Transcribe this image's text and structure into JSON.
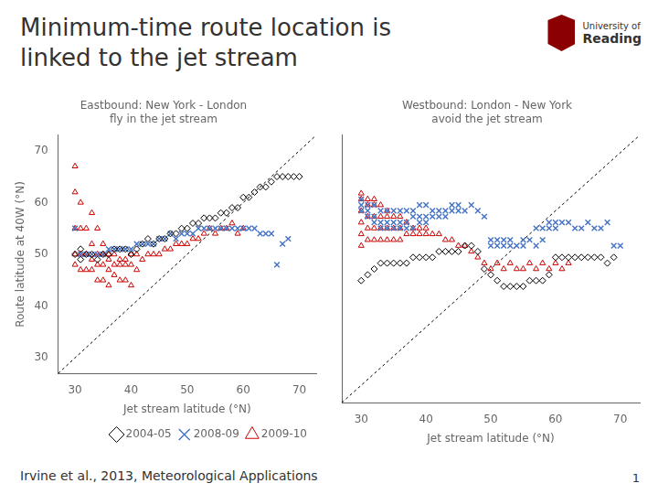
{
  "chart_data": [
    {
      "type": "scatter",
      "title": [
        "Minimum-time route location is",
        "linked to the jet stream"
      ],
      "subtitle": [
        "Eastbound: New York - London",
        "fly in the jet stream"
      ],
      "xlabel": "Jet stream latitude (°N)",
      "ylabel": "Route latitude at 40W (°N)",
      "xlim": [
        27,
        73
      ],
      "ylim": [
        27,
        73
      ],
      "xticks": [
        30,
        40,
        50,
        60,
        70
      ],
      "yticks": [
        30,
        40,
        50,
        60,
        70
      ],
      "grid": false,
      "legend": "lower right",
      "series": [
        {
          "name": "2004-05",
          "color": "#000000",
          "marker": "diamond",
          "x": [
            30,
            31,
            31,
            32,
            33,
            34,
            35,
            36,
            37,
            38,
            39,
            40,
            41,
            42,
            43,
            44,
            45,
            46,
            47,
            48,
            49,
            50,
            51,
            52,
            53,
            54,
            55,
            56,
            57,
            58,
            59,
            60,
            61,
            62,
            63,
            64,
            65,
            66,
            67,
            68,
            69,
            70
          ],
          "values": [
            50,
            49,
            51,
            50,
            50,
            49,
            50,
            50,
            51,
            51,
            51,
            50,
            51,
            52,
            53,
            52,
            53,
            53,
            54,
            54,
            55,
            55,
            56,
            56,
            57,
            57,
            57,
            58,
            58,
            59,
            59,
            61,
            61,
            62,
            63,
            63,
            64,
            65,
            65,
            65,
            65,
            65
          ]
        },
        {
          "name": "2008-09",
          "color": "#4472c4",
          "marker": "x",
          "x": [
            30,
            31,
            32,
            33,
            34,
            35,
            36,
            37,
            38,
            39,
            40,
            41,
            42,
            43,
            44,
            45,
            46,
            47,
            48,
            49,
            50,
            51,
            52,
            53,
            54,
            55,
            56,
            57,
            58,
            59,
            60,
            61,
            62,
            63,
            64,
            65,
            66,
            67,
            68
          ],
          "values": [
            55,
            50,
            50,
            50,
            50,
            50,
            51,
            51,
            51,
            51,
            51,
            52,
            52,
            52,
            52,
            53,
            53,
            54,
            53,
            54,
            54,
            54,
            55,
            55,
            55,
            55,
            55,
            55,
            55,
            55,
            55,
            55,
            55,
            54,
            54,
            54,
            48,
            52,
            53
          ]
        },
        {
          "name": "2009-10",
          "color": "#cc0000",
          "marker": "triangle",
          "x": [
            30,
            30,
            30,
            30,
            30,
            31,
            31,
            31,
            31,
            32,
            32,
            32,
            33,
            33,
            33,
            33,
            34,
            34,
            34,
            34,
            35,
            35,
            35,
            35,
            36,
            36,
            36,
            36,
            37,
            37,
            37,
            38,
            38,
            38,
            39,
            39,
            39,
            40,
            40,
            40,
            41,
            41,
            42,
            43,
            44,
            45,
            46,
            47,
            48,
            49,
            50,
            51,
            52,
            53,
            54,
            55,
            56,
            57,
            58,
            59,
            60
          ],
          "values": [
            67,
            62,
            55,
            50,
            48,
            60,
            55,
            50,
            47,
            55,
            50,
            47,
            58,
            52,
            49,
            47,
            55,
            50,
            48,
            45,
            52,
            50,
            48,
            45,
            50,
            49,
            47,
            44,
            50,
            48,
            46,
            49,
            48,
            45,
            49,
            48,
            45,
            50,
            48,
            44,
            50,
            47,
            49,
            50,
            50,
            50,
            51,
            51,
            52,
            52,
            52,
            53,
            53,
            54,
            55,
            54,
            55,
            55,
            56,
            54,
            55
          ]
        }
      ],
      "annotations": [
        {
          "type": "line",
          "x": [
            27,
            73
          ],
          "y": [
            27,
            73
          ],
          "line_style": "dotted"
        },
        {
          "type": "text",
          "text": "University of"
        },
        {
          "type": "text",
          "text": "Reading"
        },
        {
          "type": "text",
          "text": "Irvine et al., 2013, Meteorological Applications"
        },
        {
          "type": "text",
          "text": "1"
        }
      ]
    },
    {
      "type": "scatter",
      "subtitle": [
        "Westbound: London - New York",
        "avoid the jet stream"
      ],
      "xlabel": "Jet stream latitude (°N)",
      "xlim": [
        27,
        73
      ],
      "ylim": [
        27,
        73
      ],
      "xticks": [
        30,
        40,
        50,
        60,
        70
      ],
      "yticks": [
        30,
        40,
        50,
        60,
        70
      ],
      "grid": false,
      "tick_labels": "x",
      "series": [
        {
          "name": "2004-05",
          "color": "#000000",
          "marker": "diamond",
          "x": [
            30,
            31,
            32,
            33,
            34,
            35,
            36,
            37,
            38,
            39,
            40,
            41,
            42,
            43,
            44,
            45,
            46,
            47,
            48,
            49,
            50,
            51,
            52,
            53,
            54,
            55,
            56,
            57,
            58,
            59,
            60,
            61,
            62,
            63,
            64,
            65,
            66,
            67,
            68,
            69
          ],
          "values": [
            48,
            49,
            50,
            51,
            51,
            51,
            51,
            51,
            52,
            52,
            52,
            52,
            53,
            53,
            53,
            53,
            54,
            54,
            53,
            50,
            49,
            48,
            47,
            47,
            47,
            47,
            48,
            48,
            48,
            49,
            52,
            52,
            52,
            52,
            52,
            52,
            52,
            52,
            51,
            52
          ]
        },
        {
          "name": "2008-09",
          "color": "#4472c4",
          "marker": "x",
          "x": [
            30,
            30,
            30,
            31,
            31,
            31,
            32,
            32,
            32,
            33,
            33,
            33,
            34,
            34,
            34,
            35,
            35,
            35,
            36,
            36,
            36,
            37,
            37,
            37,
            38,
            38,
            38,
            39,
            39,
            39,
            40,
            40,
            40,
            41,
            41,
            42,
            42,
            43,
            43,
            44,
            44,
            45,
            45,
            46,
            47,
            48,
            49,
            50,
            50,
            51,
            51,
            52,
            52,
            53,
            53,
            54,
            55,
            55,
            56,
            57,
            57,
            58,
            58,
            59,
            59,
            60,
            60,
            61,
            62,
            63,
            64,
            65,
            66,
            67,
            68,
            69,
            70
          ],
          "values": [
            60,
            61,
            62,
            59,
            60,
            61,
            58,
            59,
            61,
            57,
            58,
            60,
            57,
            58,
            60,
            57,
            58,
            60,
            57,
            58,
            60,
            57,
            58,
            60,
            57,
            59,
            60,
            58,
            59,
            61,
            58,
            59,
            61,
            59,
            60,
            59,
            60,
            59,
            60,
            60,
            61,
            60,
            61,
            60,
            61,
            60,
            59,
            54,
            55,
            55,
            54,
            54,
            55,
            54,
            55,
            54,
            54,
            55,
            55,
            54,
            57,
            55,
            57,
            57,
            58,
            57,
            58,
            58,
            58,
            57,
            57,
            58,
            57,
            57,
            58,
            54,
            54
          ]
        },
        {
          "name": "2009-10",
          "color": "#cc0000",
          "marker": "triangle",
          "x": [
            30,
            30,
            30,
            30,
            30,
            30,
            31,
            31,
            31,
            31,
            31,
            32,
            32,
            32,
            32,
            32,
            33,
            33,
            33,
            33,
            34,
            34,
            34,
            34,
            35,
            35,
            35,
            36,
            36,
            36,
            37,
            37,
            38,
            38,
            39,
            39,
            40,
            40,
            41,
            42,
            43,
            44,
            45,
            46,
            47,
            48,
            49,
            50,
            51,
            52,
            53,
            54,
            55,
            56,
            57,
            58,
            59,
            60,
            61,
            62
          ],
          "values": [
            63,
            62,
            60,
            58,
            56,
            54,
            62,
            61,
            59,
            57,
            55,
            62,
            61,
            59,
            57,
            55,
            61,
            59,
            57,
            55,
            60,
            59,
            57,
            55,
            59,
            57,
            55,
            59,
            57,
            55,
            58,
            56,
            57,
            56,
            57,
            56,
            57,
            56,
            56,
            56,
            55,
            55,
            54,
            54,
            53,
            52,
            51,
            50,
            51,
            50,
            51,
            50,
            50,
            51,
            50,
            51,
            50,
            51,
            50,
            51
          ]
        }
      ],
      "annotations": [
        {
          "type": "line",
          "x": [
            27,
            73
          ],
          "y": [
            27,
            73
          ],
          "line_style": "dotted"
        }
      ]
    }
  ]
}
